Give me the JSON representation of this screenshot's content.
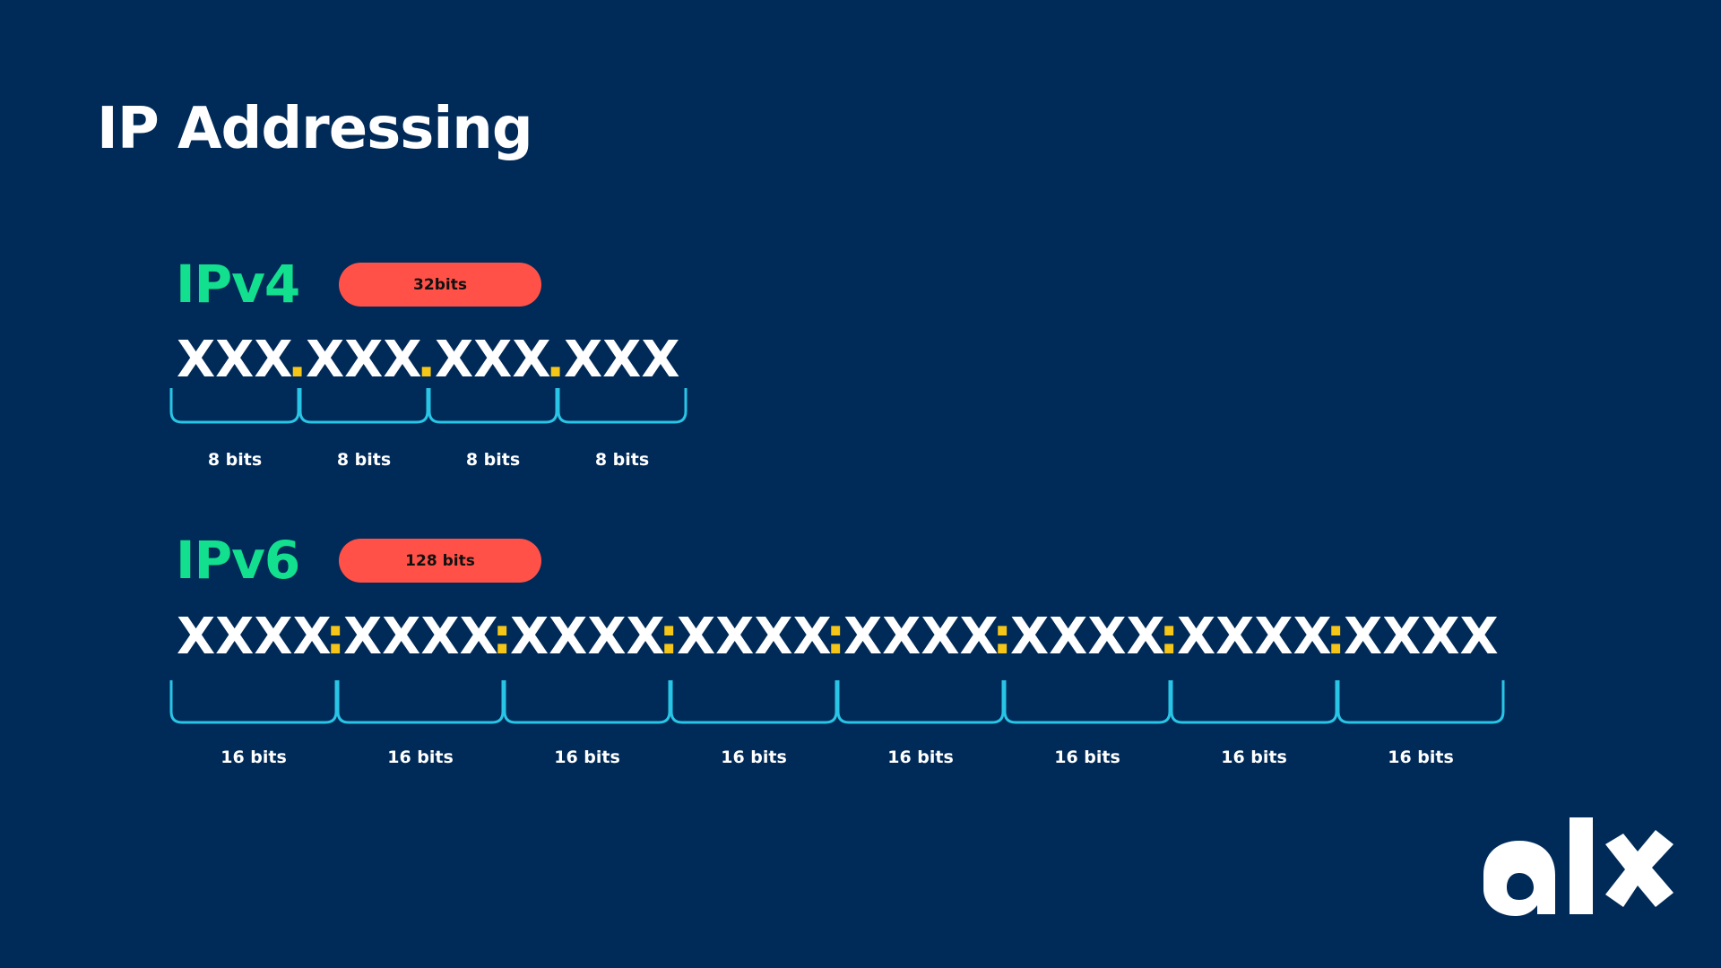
{
  "title": "IP Addressing",
  "ipv4": {
    "label": "IPv4",
    "size_badge": "32bits",
    "segments": [
      "XXX",
      "XXX",
      "XXX",
      "XXX"
    ],
    "separator": ".",
    "segment_bits_label": "8 bits"
  },
  "ipv6": {
    "label": "IPv6",
    "size_badge": "128 bits",
    "segments": [
      "XXXX",
      "XXXX",
      "XXXX",
      "XXXX",
      "XXXX",
      "XXXX",
      "XXXX",
      "XXXX"
    ],
    "separator": ":",
    "segment_bits_label": "16 bits"
  },
  "logo": {
    "text": "alx",
    "icon": "alx-logo"
  },
  "colors": {
    "background": "#002A58",
    "heading": "#FFFFFF",
    "version_label": "#12E08E",
    "badge": "#FF5147",
    "separator": "#F5C518",
    "bracket": "#29C5E6"
  }
}
